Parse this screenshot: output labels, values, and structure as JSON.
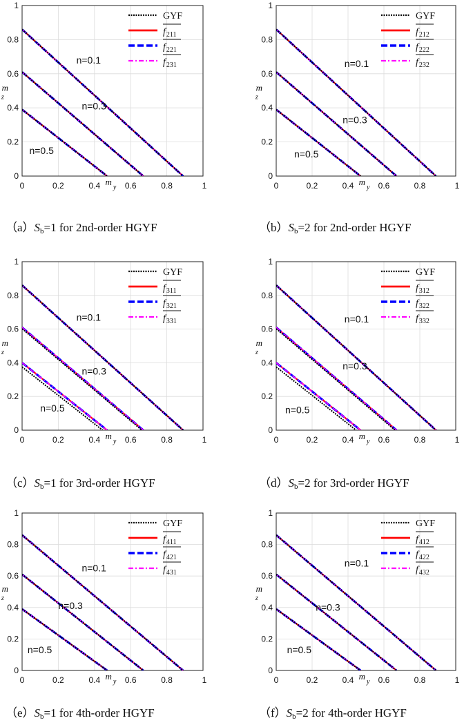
{
  "chart_data": [
    {
      "type": "line",
      "panel": "a",
      "caption": {
        "prefix": "（a）",
        "symbol": "S",
        "subscript": "b",
        "rest": "=1 for 2nd-order HGYF"
      },
      "xlabel": {
        "base": "m",
        "sub": "y"
      },
      "ylabel": {
        "base": "m",
        "sub": "z"
      },
      "xlim": [
        0,
        1
      ],
      "ylim": [
        0,
        1
      ],
      "xticks": [
        "0",
        "0.2",
        "0.4",
        "0.6",
        "0.8",
        "1"
      ],
      "yticks": [
        "0",
        "0.2",
        "0.4",
        "0.6",
        "0.8",
        "1"
      ],
      "legend": [
        {
          "label": "GYF",
          "base": "",
          "sub": "",
          "color": "#000000",
          "style": "dotted"
        },
        {
          "label": "",
          "base": "f",
          "sub": "211",
          "color": "#ff0000",
          "style": "solid"
        },
        {
          "label": "",
          "base": "f",
          "sub": "221",
          "color": "#0000ff",
          "style": "dashed"
        },
        {
          "label": "",
          "base": "f",
          "sub": "231",
          "color": "#ff00ff",
          "style": "dashdot"
        }
      ],
      "annotations": [
        {
          "text": "n=0.1",
          "x": 0.3,
          "y": 0.66
        },
        {
          "text": "n=0.3",
          "x": 0.33,
          "y": 0.39
        },
        {
          "text": "n=0.5",
          "x": 0.04,
          "y": 0.13
        }
      ],
      "series": [
        {
          "name": "n=0.1",
          "x": [
            0,
            0.89
          ],
          "y": [
            0.86,
            0
          ]
        },
        {
          "name": "n=0.3",
          "x": [
            0,
            0.67
          ],
          "y": [
            0.61,
            0
          ]
        },
        {
          "name": "n=0.5",
          "x": [
            0,
            0.47
          ],
          "y": [
            0.39,
            0
          ]
        }
      ],
      "gyf_deviation": [
        0,
        0,
        0
      ]
    },
    {
      "type": "line",
      "panel": "b",
      "caption": {
        "prefix": "（b）",
        "symbol": "S",
        "subscript": "b",
        "rest": "=2 for 2nd-order HGYF"
      },
      "xlabel": {
        "base": "m",
        "sub": "y"
      },
      "ylabel": {
        "base": "m",
        "sub": "z"
      },
      "xlim": [
        0,
        1
      ],
      "ylim": [
        0,
        1
      ],
      "xticks": [
        "0",
        "0.2",
        "0.4",
        "0.6",
        "0.8",
        "1"
      ],
      "yticks": [
        "0",
        "0.2",
        "0.4",
        "0.6",
        "0.8",
        "1"
      ],
      "legend": [
        {
          "label": "GYF",
          "base": "",
          "sub": "",
          "color": "#000000",
          "style": "dotted"
        },
        {
          "label": "",
          "base": "f",
          "sub": "212",
          "color": "#ff0000",
          "style": "solid"
        },
        {
          "label": "",
          "base": "f",
          "sub": "222",
          "color": "#0000ff",
          "style": "dashed"
        },
        {
          "label": "",
          "base": "f",
          "sub": "232",
          "color": "#ff00ff",
          "style": "dashdot"
        }
      ],
      "annotations": [
        {
          "text": "n=0.1",
          "x": 0.38,
          "y": 0.64
        },
        {
          "text": "n=0.3",
          "x": 0.37,
          "y": 0.31
        },
        {
          "text": "n=0.5",
          "x": 0.1,
          "y": 0.11
        }
      ],
      "series": [
        {
          "name": "n=0.1",
          "x": [
            0,
            0.89
          ],
          "y": [
            0.86,
            0
          ]
        },
        {
          "name": "n=0.3",
          "x": [
            0,
            0.67
          ],
          "y": [
            0.61,
            0
          ]
        },
        {
          "name": "n=0.5",
          "x": [
            0,
            0.47
          ],
          "y": [
            0.39,
            0
          ]
        }
      ],
      "gyf_deviation": [
        0,
        0,
        0
      ]
    },
    {
      "type": "line",
      "panel": "c",
      "caption": {
        "prefix": "（c）",
        "symbol": "S",
        "subscript": "b",
        "rest": "=1 for 3rd-order HGYF"
      },
      "xlabel": {
        "base": "m",
        "sub": "y"
      },
      "ylabel": {
        "base": "m",
        "sub": "z"
      },
      "xlim": [
        0,
        1
      ],
      "ylim": [
        0,
        1
      ],
      "xticks": [
        "0",
        "0.2",
        "0.4",
        "0.6",
        "0.8",
        "1"
      ],
      "yticks": [
        "0",
        "0.2",
        "0.4",
        "0.6",
        "0.8",
        "1"
      ],
      "legend": [
        {
          "label": "GYF",
          "base": "",
          "sub": "",
          "color": "#000000",
          "style": "dotted"
        },
        {
          "label": "",
          "base": "f",
          "sub": "311",
          "color": "#ff0000",
          "style": "solid"
        },
        {
          "label": "",
          "base": "f",
          "sub": "321",
          "color": "#0000ff",
          "style": "dashed"
        },
        {
          "label": "",
          "base": "f",
          "sub": "331",
          "color": "#ff00ff",
          "style": "dashdot"
        }
      ],
      "annotations": [
        {
          "text": "n=0.1",
          "x": 0.3,
          "y": 0.65
        },
        {
          "text": "n=0.3",
          "x": 0.33,
          "y": 0.33
        },
        {
          "text": "n=0.5",
          "x": 0.1,
          "y": 0.11
        }
      ],
      "series": [
        {
          "name": "n=0.1",
          "x": [
            0,
            0.89
          ],
          "y": [
            0.86,
            0
          ]
        },
        {
          "name": "n=0.3",
          "x": [
            0,
            0.67
          ],
          "y": [
            0.61,
            0
          ]
        },
        {
          "name": "n=0.5",
          "x": [
            0,
            0.47
          ],
          "y": [
            0.4,
            0
          ]
        }
      ],
      "gyf_deviation": [
        0,
        0.008,
        0.025
      ]
    },
    {
      "type": "line",
      "panel": "d",
      "caption": {
        "prefix": "（d）",
        "symbol": "S",
        "subscript": "b",
        "rest": "=2 for 3rd-order HGYF"
      },
      "xlabel": {
        "base": "m",
        "sub": "y"
      },
      "ylabel": {
        "base": "m",
        "sub": "z"
      },
      "xlim": [
        0,
        1
      ],
      "ylim": [
        0,
        1
      ],
      "xticks": [
        "0",
        "0.2",
        "0.4",
        "0.6",
        "0.8",
        "1"
      ],
      "yticks": [
        "0",
        "0.2",
        "0.4",
        "0.6",
        "0.8",
        "1"
      ],
      "legend": [
        {
          "label": "GYF",
          "base": "",
          "sub": "",
          "color": "#000000",
          "style": "dotted"
        },
        {
          "label": "",
          "base": "f",
          "sub": "312",
          "color": "#ff0000",
          "style": "solid"
        },
        {
          "label": "",
          "base": "f",
          "sub": "322",
          "color": "#0000ff",
          "style": "dashed"
        },
        {
          "label": "",
          "base": "f",
          "sub": "332",
          "color": "#ff00ff",
          "style": "dashdot"
        }
      ],
      "annotations": [
        {
          "text": "n=0.1",
          "x": 0.38,
          "y": 0.64
        },
        {
          "text": "n=0.3",
          "x": 0.37,
          "y": 0.36
        },
        {
          "text": "n=0.5",
          "x": 0.05,
          "y": 0.1
        }
      ],
      "series": [
        {
          "name": "n=0.1",
          "x": [
            0,
            0.89
          ],
          "y": [
            0.86,
            0
          ]
        },
        {
          "name": "n=0.3",
          "x": [
            0,
            0.67
          ],
          "y": [
            0.61,
            0
          ]
        },
        {
          "name": "n=0.5",
          "x": [
            0,
            0.47
          ],
          "y": [
            0.4,
            0
          ]
        }
      ],
      "gyf_deviation": [
        0,
        0.008,
        0.025
      ]
    },
    {
      "type": "line",
      "panel": "e",
      "caption": {
        "prefix": "（e）",
        "symbol": "S",
        "subscript": "b",
        "rest": "=1 for 4th-order HGYF"
      },
      "xlabel": {
        "base": "m",
        "sub": "y"
      },
      "ylabel": {
        "base": "m",
        "sub": "z"
      },
      "xlim": [
        0,
        1
      ],
      "ylim": [
        0,
        1
      ],
      "xticks": [
        "0",
        "0.2",
        "0.4",
        "0.6",
        "0.8",
        "1"
      ],
      "yticks": [
        "0",
        "0.2",
        "0.4",
        "0.6",
        "0.8",
        "1"
      ],
      "legend": [
        {
          "label": "GYF",
          "base": "",
          "sub": "",
          "color": "#000000",
          "style": "dotted"
        },
        {
          "label": "",
          "base": "f",
          "sub": "411",
          "color": "#ff0000",
          "style": "solid"
        },
        {
          "label": "",
          "base": "f",
          "sub": "421",
          "color": "#0000ff",
          "style": "dashed"
        },
        {
          "label": "",
          "base": "f",
          "sub": "431",
          "color": "#ff00ff",
          "style": "dashdot"
        }
      ],
      "annotations": [
        {
          "text": "n=0.1",
          "x": 0.33,
          "y": 0.63
        },
        {
          "text": "n=0.3",
          "x": 0.2,
          "y": 0.39
        },
        {
          "text": "n=0.5",
          "x": 0.03,
          "y": 0.11
        }
      ],
      "series": [
        {
          "name": "n=0.1",
          "x": [
            0,
            0.89
          ],
          "y": [
            0.86,
            0
          ]
        },
        {
          "name": "n=0.3",
          "x": [
            0,
            0.67
          ],
          "y": [
            0.61,
            0
          ]
        },
        {
          "name": "n=0.5",
          "x": [
            0,
            0.47
          ],
          "y": [
            0.39,
            0
          ]
        }
      ],
      "gyf_deviation": [
        0,
        0,
        0
      ]
    },
    {
      "type": "line",
      "panel": "f",
      "caption": {
        "prefix": "（f）",
        "symbol": "S",
        "subscript": "b",
        "rest": "=2 for 4th-order HGYF"
      },
      "xlabel": {
        "base": "m",
        "sub": "y"
      },
      "ylabel": {
        "base": "m",
        "sub": "z"
      },
      "xlim": [
        0,
        1
      ],
      "ylim": [
        0,
        1
      ],
      "xticks": [
        "0",
        "0.2",
        "0.4",
        "0.6",
        "0.8",
        "1"
      ],
      "yticks": [
        "0",
        "0.2",
        "0.4",
        "0.6",
        "0.8",
        "1"
      ],
      "legend": [
        {
          "label": "GYF",
          "base": "",
          "sub": "",
          "color": "#000000",
          "style": "dotted"
        },
        {
          "label": "",
          "base": "f",
          "sub": "412",
          "color": "#ff0000",
          "style": "solid"
        },
        {
          "label": "",
          "base": "f",
          "sub": "422",
          "color": "#0000ff",
          "style": "dashed"
        },
        {
          "label": "",
          "base": "f",
          "sub": "432",
          "color": "#ff00ff",
          "style": "dashdot"
        }
      ],
      "annotations": [
        {
          "text": "n=0.1",
          "x": 0.38,
          "y": 0.66
        },
        {
          "text": "n=0.3",
          "x": 0.22,
          "y": 0.38
        },
        {
          "text": "n=0.5",
          "x": 0.06,
          "y": 0.11
        }
      ],
      "series": [
        {
          "name": "n=0.1",
          "x": [
            0,
            0.89
          ],
          "y": [
            0.86,
            0
          ]
        },
        {
          "name": "n=0.3",
          "x": [
            0,
            0.67
          ],
          "y": [
            0.61,
            0
          ]
        },
        {
          "name": "n=0.5",
          "x": [
            0,
            0.47
          ],
          "y": [
            0.39,
            0
          ]
        }
      ],
      "gyf_deviation": [
        0,
        0,
        0
      ]
    }
  ]
}
